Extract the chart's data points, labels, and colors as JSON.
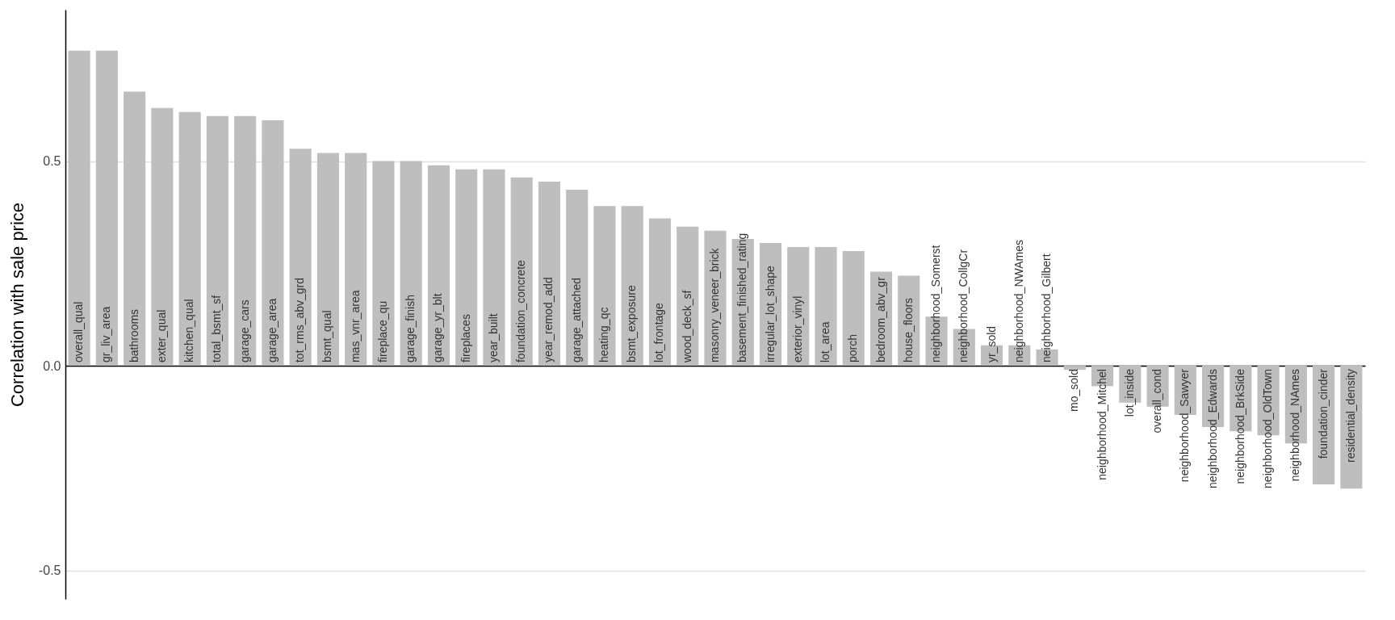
{
  "chart_data": {
    "type": "bar",
    "ylabel": "Correlation with sale price",
    "categories": [
      "overall_qual",
      "gr_liv_area",
      "bathrooms",
      "exter_qual",
      "kitchen_qual",
      "total_bsmt_sf",
      "garage_cars",
      "garage_area",
      "tot_rms_abv_grd",
      "bsmt_qual",
      "mas_vnr_area",
      "fireplace_qu",
      "garage_finish",
      "garage_yr_blt",
      "fireplaces",
      "year_built",
      "foundation_concrete",
      "year_remod_add",
      "garage_attached",
      "heating_qc",
      "bsmt_exposure",
      "lot_frontage",
      "wood_deck_sf",
      "masonry_veneer_brick",
      "basement_finished_rating",
      "irregular_lot_shape",
      "exterior_vinyl",
      "lot_area",
      "porch",
      "bedroom_abv_gr",
      "house_floors",
      "neighborhood_Somerst",
      "neighborhood_CollgCr",
      "yr_sold",
      "neighborhood_NWAmes",
      "neighborhood_Gilbert",
      "mo_sold",
      "neighborhood_Mitchel",
      "lot_inside",
      "overall_cond",
      "neighborhood_Sawyer",
      "neighborhood_Edwards",
      "neighborhood_BrkSide",
      "neighborhood_OldTown",
      "neighborhood_NAmes",
      "foundation_cinder",
      "residential_density"
    ],
    "values": [
      0.77,
      0.77,
      0.67,
      0.63,
      0.62,
      0.61,
      0.61,
      0.6,
      0.53,
      0.52,
      0.52,
      0.5,
      0.5,
      0.49,
      0.48,
      0.48,
      0.46,
      0.45,
      0.43,
      0.39,
      0.39,
      0.36,
      0.34,
      0.33,
      0.31,
      0.3,
      0.29,
      0.29,
      0.28,
      0.23,
      0.22,
      0.12,
      0.09,
      0.05,
      0.05,
      0.04,
      -0.01,
      -0.05,
      -0.09,
      -0.1,
      -0.12,
      -0.15,
      -0.16,
      -0.17,
      -0.19,
      -0.29,
      -0.3
    ],
    "color": "#bebebe",
    "ylim": [
      -0.57,
      0.87
    ],
    "yticks": [
      {
        "value": -0.5,
        "label": "-0.5"
      },
      {
        "value": 0,
        "label": "0.0"
      },
      {
        "value": 0.5,
        "label": "0.5"
      }
    ],
    "grid": "y"
  }
}
